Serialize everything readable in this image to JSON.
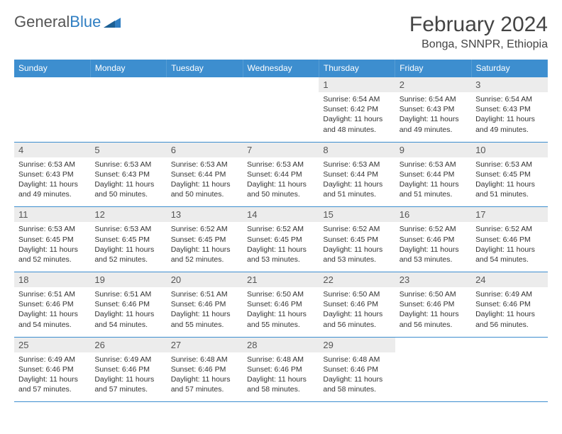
{
  "brand": {
    "name_a": "General",
    "name_b": "Blue",
    "logo_color": "#2f7ec2"
  },
  "header": {
    "title": "February 2024",
    "location": "Bonga, SNNPR, Ethiopia"
  },
  "colors": {
    "header_bg": "#3d8ecf",
    "header_text": "#ffffff",
    "daynum_bg": "#ececec",
    "text": "#333333",
    "border": "#3d8ecf"
  },
  "typography": {
    "body_pt": 11,
    "title_pt": 30,
    "location_pt": 16,
    "day_pt": 10.5,
    "th_pt": 12
  },
  "daynames": [
    "Sunday",
    "Monday",
    "Tuesday",
    "Wednesday",
    "Thursday",
    "Friday",
    "Saturday"
  ],
  "weeks": [
    [
      null,
      null,
      null,
      null,
      {
        "n": "1",
        "sunrise": "Sunrise: 6:54 AM",
        "sunset": "Sunset: 6:42 PM",
        "day": "Daylight: 11 hours and 48 minutes."
      },
      {
        "n": "2",
        "sunrise": "Sunrise: 6:54 AM",
        "sunset": "Sunset: 6:43 PM",
        "day": "Daylight: 11 hours and 49 minutes."
      },
      {
        "n": "3",
        "sunrise": "Sunrise: 6:54 AM",
        "sunset": "Sunset: 6:43 PM",
        "day": "Daylight: 11 hours and 49 minutes."
      }
    ],
    [
      {
        "n": "4",
        "sunrise": "Sunrise: 6:53 AM",
        "sunset": "Sunset: 6:43 PM",
        "day": "Daylight: 11 hours and 49 minutes."
      },
      {
        "n": "5",
        "sunrise": "Sunrise: 6:53 AM",
        "sunset": "Sunset: 6:43 PM",
        "day": "Daylight: 11 hours and 50 minutes."
      },
      {
        "n": "6",
        "sunrise": "Sunrise: 6:53 AM",
        "sunset": "Sunset: 6:44 PM",
        "day": "Daylight: 11 hours and 50 minutes."
      },
      {
        "n": "7",
        "sunrise": "Sunrise: 6:53 AM",
        "sunset": "Sunset: 6:44 PM",
        "day": "Daylight: 11 hours and 50 minutes."
      },
      {
        "n": "8",
        "sunrise": "Sunrise: 6:53 AM",
        "sunset": "Sunset: 6:44 PM",
        "day": "Daylight: 11 hours and 51 minutes."
      },
      {
        "n": "9",
        "sunrise": "Sunrise: 6:53 AM",
        "sunset": "Sunset: 6:44 PM",
        "day": "Daylight: 11 hours and 51 minutes."
      },
      {
        "n": "10",
        "sunrise": "Sunrise: 6:53 AM",
        "sunset": "Sunset: 6:45 PM",
        "day": "Daylight: 11 hours and 51 minutes."
      }
    ],
    [
      {
        "n": "11",
        "sunrise": "Sunrise: 6:53 AM",
        "sunset": "Sunset: 6:45 PM",
        "day": "Daylight: 11 hours and 52 minutes."
      },
      {
        "n": "12",
        "sunrise": "Sunrise: 6:53 AM",
        "sunset": "Sunset: 6:45 PM",
        "day": "Daylight: 11 hours and 52 minutes."
      },
      {
        "n": "13",
        "sunrise": "Sunrise: 6:52 AM",
        "sunset": "Sunset: 6:45 PM",
        "day": "Daylight: 11 hours and 52 minutes."
      },
      {
        "n": "14",
        "sunrise": "Sunrise: 6:52 AM",
        "sunset": "Sunset: 6:45 PM",
        "day": "Daylight: 11 hours and 53 minutes."
      },
      {
        "n": "15",
        "sunrise": "Sunrise: 6:52 AM",
        "sunset": "Sunset: 6:45 PM",
        "day": "Daylight: 11 hours and 53 minutes."
      },
      {
        "n": "16",
        "sunrise": "Sunrise: 6:52 AM",
        "sunset": "Sunset: 6:46 PM",
        "day": "Daylight: 11 hours and 53 minutes."
      },
      {
        "n": "17",
        "sunrise": "Sunrise: 6:52 AM",
        "sunset": "Sunset: 6:46 PM",
        "day": "Daylight: 11 hours and 54 minutes."
      }
    ],
    [
      {
        "n": "18",
        "sunrise": "Sunrise: 6:51 AM",
        "sunset": "Sunset: 6:46 PM",
        "day": "Daylight: 11 hours and 54 minutes."
      },
      {
        "n": "19",
        "sunrise": "Sunrise: 6:51 AM",
        "sunset": "Sunset: 6:46 PM",
        "day": "Daylight: 11 hours and 54 minutes."
      },
      {
        "n": "20",
        "sunrise": "Sunrise: 6:51 AM",
        "sunset": "Sunset: 6:46 PM",
        "day": "Daylight: 11 hours and 55 minutes."
      },
      {
        "n": "21",
        "sunrise": "Sunrise: 6:50 AM",
        "sunset": "Sunset: 6:46 PM",
        "day": "Daylight: 11 hours and 55 minutes."
      },
      {
        "n": "22",
        "sunrise": "Sunrise: 6:50 AM",
        "sunset": "Sunset: 6:46 PM",
        "day": "Daylight: 11 hours and 56 minutes."
      },
      {
        "n": "23",
        "sunrise": "Sunrise: 6:50 AM",
        "sunset": "Sunset: 6:46 PM",
        "day": "Daylight: 11 hours and 56 minutes."
      },
      {
        "n": "24",
        "sunrise": "Sunrise: 6:49 AM",
        "sunset": "Sunset: 6:46 PM",
        "day": "Daylight: 11 hours and 56 minutes."
      }
    ],
    [
      {
        "n": "25",
        "sunrise": "Sunrise: 6:49 AM",
        "sunset": "Sunset: 6:46 PM",
        "day": "Daylight: 11 hours and 57 minutes."
      },
      {
        "n": "26",
        "sunrise": "Sunrise: 6:49 AM",
        "sunset": "Sunset: 6:46 PM",
        "day": "Daylight: 11 hours and 57 minutes."
      },
      {
        "n": "27",
        "sunrise": "Sunrise: 6:48 AM",
        "sunset": "Sunset: 6:46 PM",
        "day": "Daylight: 11 hours and 57 minutes."
      },
      {
        "n": "28",
        "sunrise": "Sunrise: 6:48 AM",
        "sunset": "Sunset: 6:46 PM",
        "day": "Daylight: 11 hours and 58 minutes."
      },
      {
        "n": "29",
        "sunrise": "Sunrise: 6:48 AM",
        "sunset": "Sunset: 6:46 PM",
        "day": "Daylight: 11 hours and 58 minutes."
      },
      null,
      null
    ]
  ]
}
